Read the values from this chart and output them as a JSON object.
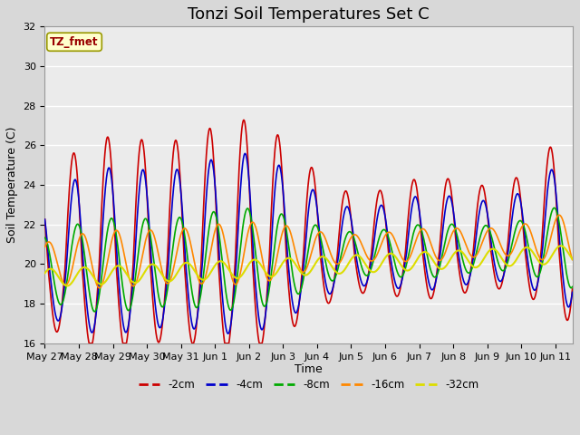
{
  "title": "Tonzi Soil Temperatures Set C",
  "xlabel": "Time",
  "ylabel": "Soil Temperature (C)",
  "annotation": "TZ_fmet",
  "ylim": [
    16,
    32
  ],
  "xlim_days": 15.5,
  "tick_labels": [
    "May 27",
    "May 28",
    "May 29",
    "May 30",
    "May 31",
    "Jun 1",
    "Jun 2",
    "Jun 3",
    "Jun 4",
    "Jun 5",
    "Jun 6",
    "Jun 7",
    "Jun 8",
    "Jun 9",
    "Jun 10",
    "Jun 11"
  ],
  "series": {
    "-2cm": {
      "color": "#cc0000",
      "linewidth": 1.2
    },
    "-4cm": {
      "color": "#0000cc",
      "linewidth": 1.2
    },
    "-8cm": {
      "color": "#00aa00",
      "linewidth": 1.2
    },
    "-16cm": {
      "color": "#ff8800",
      "linewidth": 1.2
    },
    "-32cm": {
      "color": "#dddd00",
      "linewidth": 1.5
    }
  },
  "background_color": "#d8d8d8",
  "plot_bg_color": "#ebebeb",
  "grid_color": "#ffffff",
  "title_fontsize": 13,
  "label_fontsize": 9,
  "tick_fontsize": 8
}
